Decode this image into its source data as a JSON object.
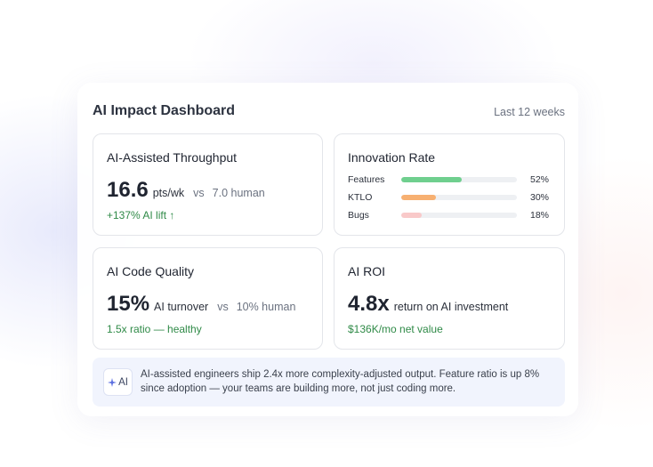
{
  "dashboard": {
    "title": "AI Impact Dashboard",
    "range": "Last 12 weeks"
  },
  "throughput": {
    "title": "AI-Assisted Throughput",
    "value": "16.6",
    "unit": "pts/wk",
    "vs": "vs",
    "comparison": "7.0 human",
    "lift": "+137% AI lift ↑"
  },
  "innovation": {
    "title": "Innovation Rate",
    "rows": [
      {
        "label": "Features",
        "pct_label": "52%",
        "value": 52,
        "color": "#6fcf8e"
      },
      {
        "label": "KTLO",
        "pct_label": "30%",
        "value": 30,
        "color": "#f7b071"
      },
      {
        "label": "Bugs",
        "pct_label": "18%",
        "value": 18,
        "color": "#f9c9c9"
      }
    ]
  },
  "quality": {
    "title": "AI Code Quality",
    "value": "15%",
    "unit": "AI turnover",
    "vs": "vs",
    "comparison": "10% human",
    "ratio": "1.5x ratio — healthy"
  },
  "roi": {
    "title": "AI ROI",
    "value": "4.8x",
    "unit": "return on AI investment",
    "net": "$136K/mo net value"
  },
  "insight": {
    "badge": "AI",
    "icon": "sparkle-icon",
    "text": "AI-assisted engineers ship 2.4x more complexity-adjusted output. Feature ratio is up 8% since adoption — your teams are building more, not just coding more."
  },
  "colors": {
    "accent_green": "#2f8a47",
    "insight_bg": "#f1f4fd"
  }
}
